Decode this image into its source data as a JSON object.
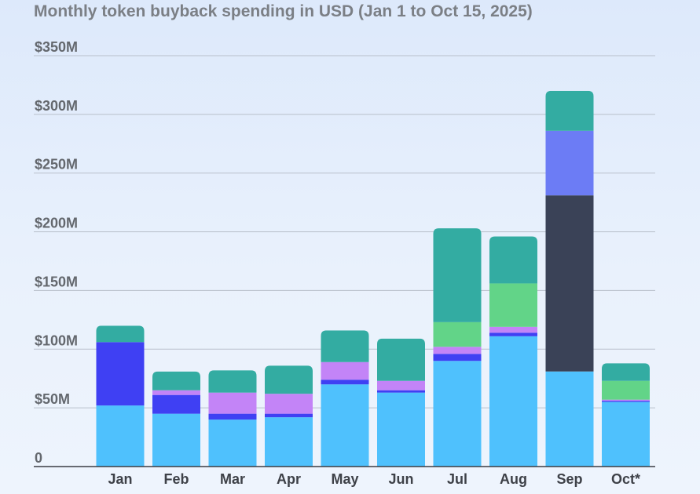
{
  "chart_data": {
    "type": "bar",
    "stacked": true,
    "title": "Monthly token buyback spending in USD (Jan 1 to Oct 15, 2025)",
    "categories": [
      "Jan",
      "Feb",
      "Mar",
      "Apr",
      "May",
      "Jun",
      "Jul",
      "Aug",
      "Sep",
      "Oct*"
    ],
    "ylim": [
      0,
      350
    ],
    "yticks": [
      0,
      50,
      100,
      150,
      200,
      250,
      300,
      350
    ],
    "ytick_labels": [
      "0",
      "$50M",
      "$100M",
      "$150M",
      "$200M",
      "$250M",
      "$300M",
      "$350M"
    ],
    "grid": true,
    "legend": "none",
    "series": [
      {
        "color": "#4fc1fd",
        "values": [
          52,
          45,
          40,
          42,
          70,
          63,
          90,
          111,
          81,
          55
        ]
      },
      {
        "color": "#3f40f3",
        "values": [
          54,
          16,
          5,
          3,
          4,
          2,
          6,
          3,
          0,
          1
        ]
      },
      {
        "color": "#c384f7",
        "values": [
          0,
          4,
          18,
          17,
          15,
          8,
          6,
          5,
          0,
          1
        ]
      },
      {
        "color": "#62d488",
        "values": [
          0,
          0,
          0,
          0,
          0,
          0,
          21,
          37,
          0,
          16
        ]
      },
      {
        "color": "#3a4257",
        "values": [
          0,
          0,
          0,
          0,
          0,
          0,
          0,
          0,
          150,
          0
        ]
      },
      {
        "color": "#6c7cf5",
        "values": [
          0,
          0,
          0,
          0,
          0,
          0,
          0,
          0,
          55,
          0
        ]
      },
      {
        "color": "#33aca2",
        "values": [
          14,
          16,
          19,
          24,
          27,
          36,
          80,
          40,
          34,
          15
        ]
      }
    ]
  }
}
